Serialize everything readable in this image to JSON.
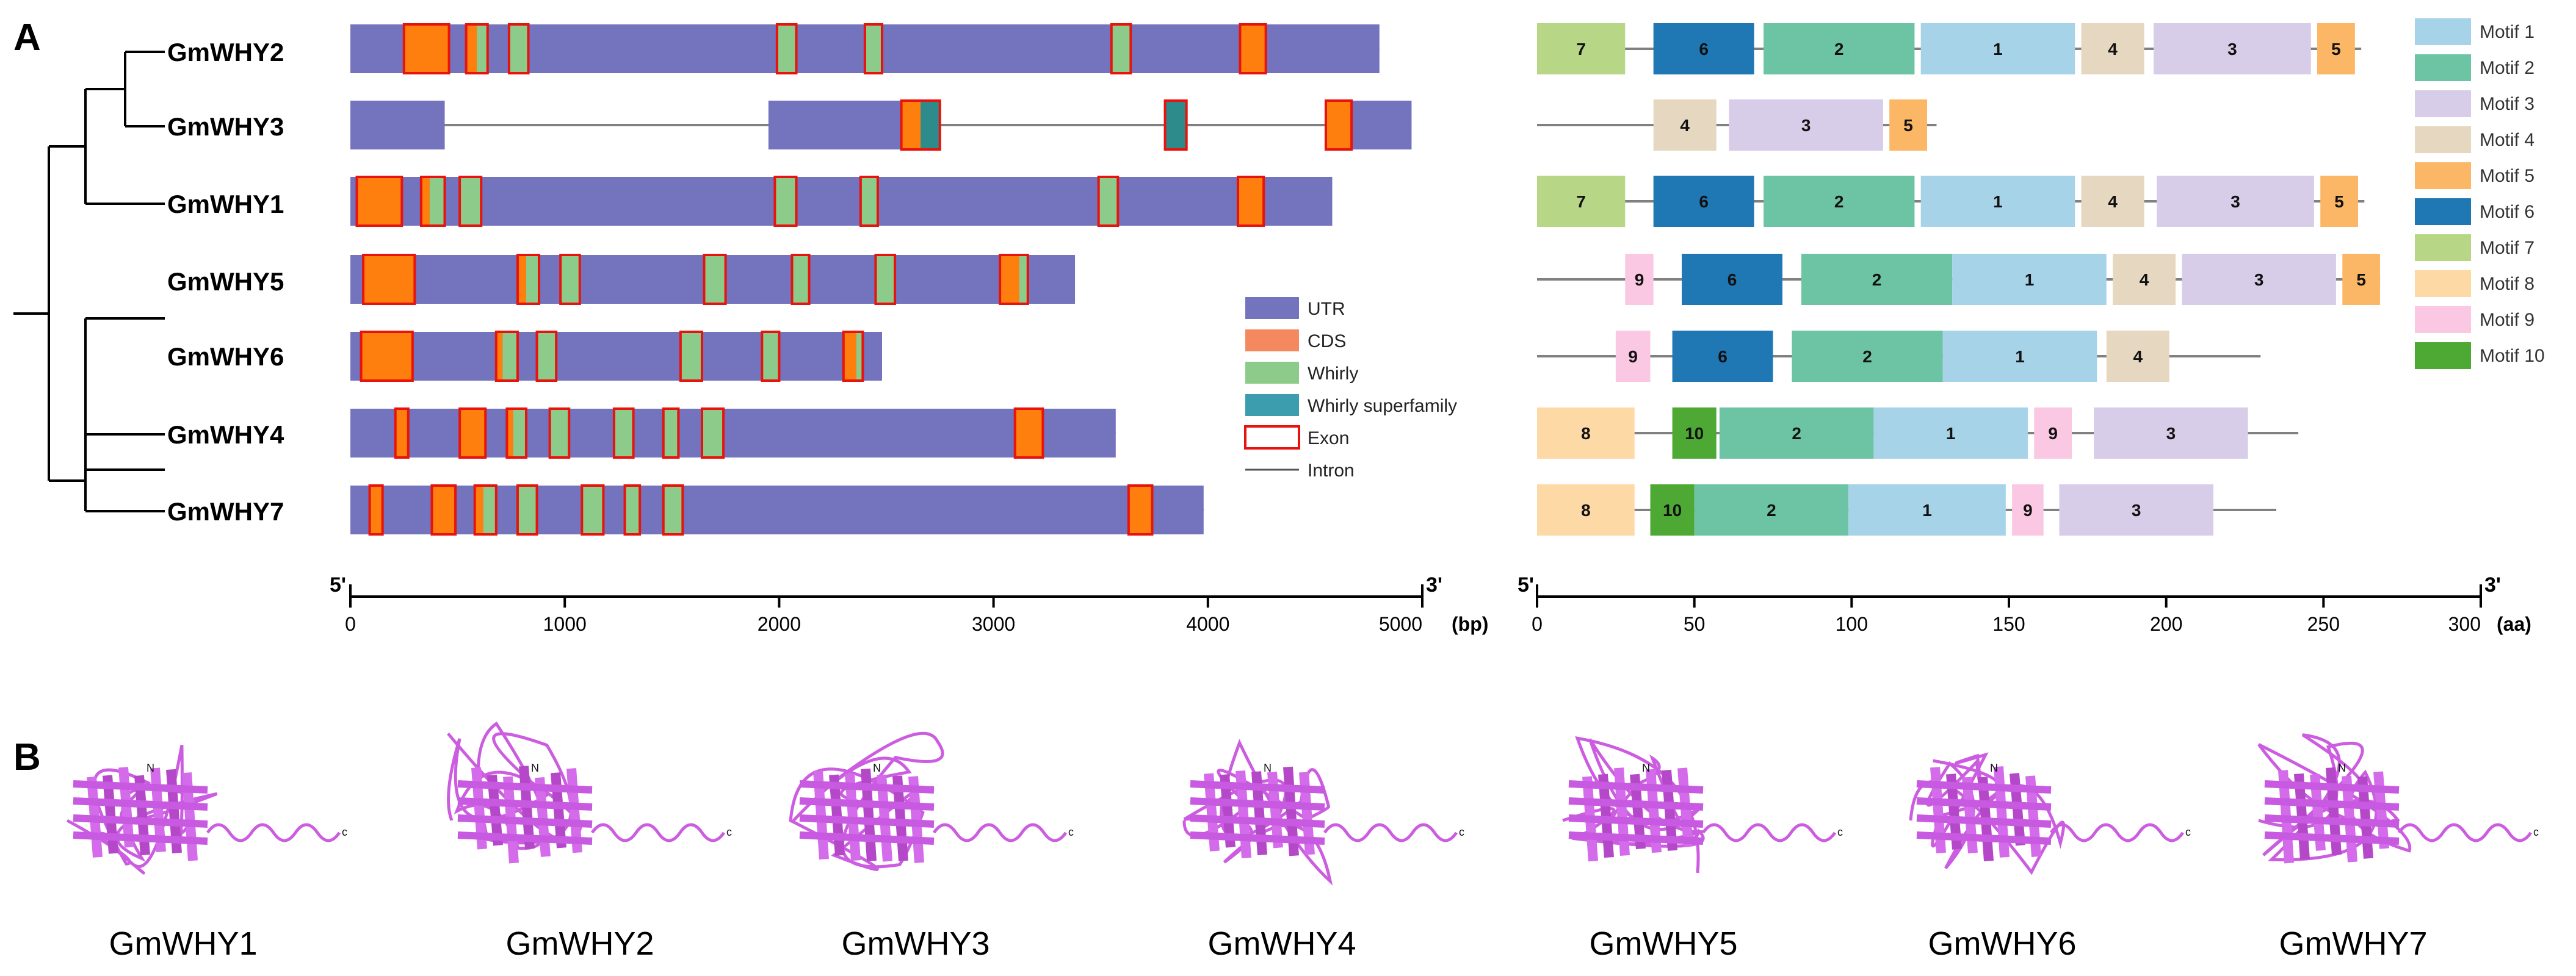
{
  "panels": {
    "a_label": "A",
    "b_label": "B"
  },
  "colors": {
    "utr": "#7373BE",
    "cds": "#FF7F0E",
    "whirly": "#8DCB8A",
    "whirly_super": "#2E8B8B",
    "exon_border": "#E8130C",
    "intron": "#808080",
    "motifs": [
      "#A7D3E8",
      "#6CC4A4",
      "#D8CDE9",
      "#E6D8C0",
      "#FBB766",
      "#1F77B4",
      "#B7D786",
      "#FDD9A6",
      "#FAC8E3",
      "#4DA933"
    ],
    "protein": "#CC5CE0"
  },
  "genes": [
    "GmWHY2",
    "GmWHY3",
    "GmWHY1",
    "GmWHY5",
    "GmWHY6",
    "GmWHY4",
    "GmWHY7"
  ],
  "gene_axis": {
    "start_label": "5'",
    "end_label": "3'",
    "ticks": [
      0,
      1000,
      2000,
      3000,
      4000,
      5000
    ],
    "unit": "(bp)",
    "max": 5000
  },
  "motif_axis": {
    "start_label": "5'",
    "end_label": "3'",
    "ticks": [
      0,
      50,
      100,
      150,
      200,
      250,
      300
    ],
    "unit": "(aa)",
    "max": 300
  },
  "legend": {
    "utr": "UTR",
    "cds": "CDS",
    "whirly": "Whirly",
    "whirly_super": "Whirly superfamily",
    "exon": "Exon",
    "intron": "Intron"
  },
  "motif_legend": [
    "Motif 1",
    "Motif 2",
    "Motif 3",
    "Motif 4",
    "Motif 5",
    "Motif 6",
    "Motif 7",
    "Motif 8",
    "Motif 9",
    "Motif 10"
  ],
  "gene_structures": [
    {
      "name": "GmWHY2",
      "length": 4800,
      "utr": [
        [
          0,
          4800
        ]
      ],
      "exons": [
        [
          250,
          460
        ],
        [
          540,
          640
        ],
        [
          740,
          830
        ],
        [
          1990,
          2080
        ],
        [
          2400,
          2480
        ],
        [
          3550,
          3640
        ],
        [
          4150,
          4270
        ]
      ],
      "cds": [
        [
          250,
          460
        ],
        [
          540,
          590
        ],
        [
          4150,
          4270
        ]
      ],
      "whirly": [
        [
          590,
          640
        ],
        [
          740,
          830
        ],
        [
          1990,
          2080
        ],
        [
          2400,
          2480
        ],
        [
          3550,
          3640
        ]
      ],
      "wsuper": []
    },
    {
      "name": "GmWHY3",
      "length": 4950,
      "utr": [
        [
          0,
          440
        ],
        [
          1950,
          2750
        ],
        [
          4550,
          4950
        ]
      ],
      "exons": [
        [
          2570,
          2750
        ],
        [
          3800,
          3900
        ],
        [
          4550,
          4670
        ]
      ],
      "cds": [
        [
          2570,
          2660
        ],
        [
          4550,
          4670
        ]
      ],
      "whirly": [],
      "wsuper": [
        [
          2660,
          2750
        ],
        [
          3800,
          3900
        ]
      ]
    },
    {
      "name": "GmWHY1",
      "length": 4580,
      "utr": [
        [
          0,
          4580
        ]
      ],
      "exons": [
        [
          30,
          240
        ],
        [
          330,
          440
        ],
        [
          510,
          610
        ],
        [
          1980,
          2080
        ],
        [
          2380,
          2460
        ],
        [
          3490,
          3580
        ],
        [
          4140,
          4260
        ]
      ],
      "cds": [
        [
          30,
          240
        ],
        [
          330,
          370
        ],
        [
          4140,
          4260
        ]
      ],
      "whirly": [
        [
          370,
          440
        ],
        [
          510,
          610
        ],
        [
          1980,
          2080
        ],
        [
          2380,
          2460
        ],
        [
          3490,
          3580
        ]
      ],
      "wsuper": []
    },
    {
      "name": "GmWHY5",
      "length": 3380,
      "utr": [
        [
          0,
          3380
        ]
      ],
      "exons": [
        [
          60,
          300
        ],
        [
          780,
          880
        ],
        [
          980,
          1070
        ],
        [
          1650,
          1750
        ],
        [
          2060,
          2140
        ],
        [
          2450,
          2540
        ],
        [
          3030,
          3160
        ]
      ],
      "cds": [
        [
          60,
          300
        ],
        [
          780,
          820
        ],
        [
          3030,
          3120
        ]
      ],
      "whirly": [
        [
          820,
          880
        ],
        [
          980,
          1070
        ],
        [
          1650,
          1750
        ],
        [
          2060,
          2140
        ],
        [
          2450,
          2540
        ],
        [
          3120,
          3160
        ]
      ],
      "wsuper": []
    },
    {
      "name": "GmWHY6",
      "length": 2480,
      "utr": [
        [
          0,
          2480
        ]
      ],
      "exons": [
        [
          50,
          290
        ],
        [
          680,
          780
        ],
        [
          870,
          960
        ],
        [
          1540,
          1640
        ],
        [
          1920,
          2000
        ],
        [
          2300,
          2390
        ]
      ],
      "cds": [
        [
          50,
          290
        ],
        [
          680,
          710
        ],
        [
          2300,
          2360
        ]
      ],
      "whirly": [
        [
          710,
          780
        ],
        [
          870,
          960
        ],
        [
          1540,
          1640
        ],
        [
          1920,
          2000
        ],
        [
          2360,
          2390
        ]
      ],
      "wsuper": []
    },
    {
      "name": "GmWHY4",
      "length": 3570,
      "utr": [
        [
          0,
          3570
        ]
      ],
      "exons": [
        [
          210,
          270
        ],
        [
          510,
          630
        ],
        [
          730,
          820
        ],
        [
          930,
          1020
        ],
        [
          1230,
          1320
        ],
        [
          1460,
          1530
        ],
        [
          1640,
          1740
        ],
        [
          3100,
          3230
        ]
      ],
      "cds": [
        [
          210,
          270
        ],
        [
          510,
          630
        ],
        [
          730,
          760
        ],
        [
          3100,
          3230
        ]
      ],
      "whirly": [
        [
          760,
          820
        ],
        [
          930,
          1020
        ],
        [
          1230,
          1320
        ],
        [
          1460,
          1530
        ],
        [
          1640,
          1740
        ]
      ],
      "wsuper": []
    },
    {
      "name": "GmWHY7",
      "length": 3980,
      "utr": [
        [
          0,
          3980
        ]
      ],
      "exons": [
        [
          90,
          150
        ],
        [
          380,
          490
        ],
        [
          580,
          680
        ],
        [
          780,
          870
        ],
        [
          1080,
          1180
        ],
        [
          1280,
          1350
        ],
        [
          1460,
          1550
        ],
        [
          3630,
          3740
        ]
      ],
      "cds": [
        [
          90,
          150
        ],
        [
          380,
          490
        ],
        [
          580,
          620
        ],
        [
          3630,
          3740
        ]
      ],
      "whirly": [
        [
          620,
          680
        ],
        [
          780,
          870
        ],
        [
          1080,
          1180
        ],
        [
          1280,
          1350
        ],
        [
          1460,
          1550
        ]
      ],
      "wsuper": []
    }
  ],
  "motif_structures": [
    {
      "name": "GmWHY2",
      "length": 262,
      "motifs": [
        [
          7,
          0,
          28
        ],
        [
          6,
          37,
          69
        ],
        [
          2,
          72,
          120
        ],
        [
          1,
          122,
          171
        ],
        [
          4,
          173,
          193
        ],
        [
          3,
          196,
          246
        ],
        [
          5,
          248,
          260
        ]
      ]
    },
    {
      "name": "GmWHY3",
      "length": 127,
      "motifs": [
        [
          4,
          37,
          57
        ],
        [
          3,
          61,
          110
        ],
        [
          5,
          112,
          124
        ]
      ]
    },
    {
      "name": "GmWHY1",
      "length": 263,
      "motifs": [
        [
          7,
          0,
          28
        ],
        [
          6,
          37,
          69
        ],
        [
          2,
          72,
          120
        ],
        [
          1,
          122,
          171
        ],
        [
          4,
          173,
          193
        ],
        [
          3,
          197,
          247
        ],
        [
          5,
          249,
          261
        ]
      ]
    },
    {
      "name": "GmWHY5",
      "length": 268,
      "motifs": [
        [
          9,
          28,
          37
        ],
        [
          6,
          46,
          78
        ],
        [
          2,
          84,
          132
        ],
        [
          1,
          132,
          181
        ],
        [
          4,
          183,
          203
        ],
        [
          3,
          205,
          254
        ],
        [
          5,
          256,
          268
        ]
      ]
    },
    {
      "name": "GmWHY6",
      "length": 230,
      "motifs": [
        [
          9,
          25,
          36
        ],
        [
          6,
          43,
          75
        ],
        [
          2,
          81,
          129
        ],
        [
          1,
          129,
          178
        ],
        [
          4,
          181,
          201
        ]
      ]
    },
    {
      "name": "GmWHY4",
      "length": 242,
      "motifs": [
        [
          8,
          0,
          31
        ],
        [
          10,
          43,
          57
        ],
        [
          2,
          58,
          107
        ],
        [
          1,
          107,
          156
        ],
        [
          9,
          158,
          170
        ],
        [
          3,
          177,
          226
        ]
      ]
    },
    {
      "name": "GmWHY7",
      "length": 235,
      "motifs": [
        [
          8,
          0,
          31
        ],
        [
          10,
          36,
          50
        ],
        [
          2,
          50,
          99
        ],
        [
          1,
          99,
          149
        ],
        [
          9,
          151,
          161
        ],
        [
          3,
          166,
          215
        ]
      ]
    }
  ],
  "proteins": [
    "GmWHY1",
    "GmWHY2",
    "GmWHY3",
    "GmWHY4",
    "GmWHY5",
    "GmWHY6",
    "GmWHY7"
  ],
  "terminal_marks": {
    "n": "N",
    "c": "c"
  }
}
